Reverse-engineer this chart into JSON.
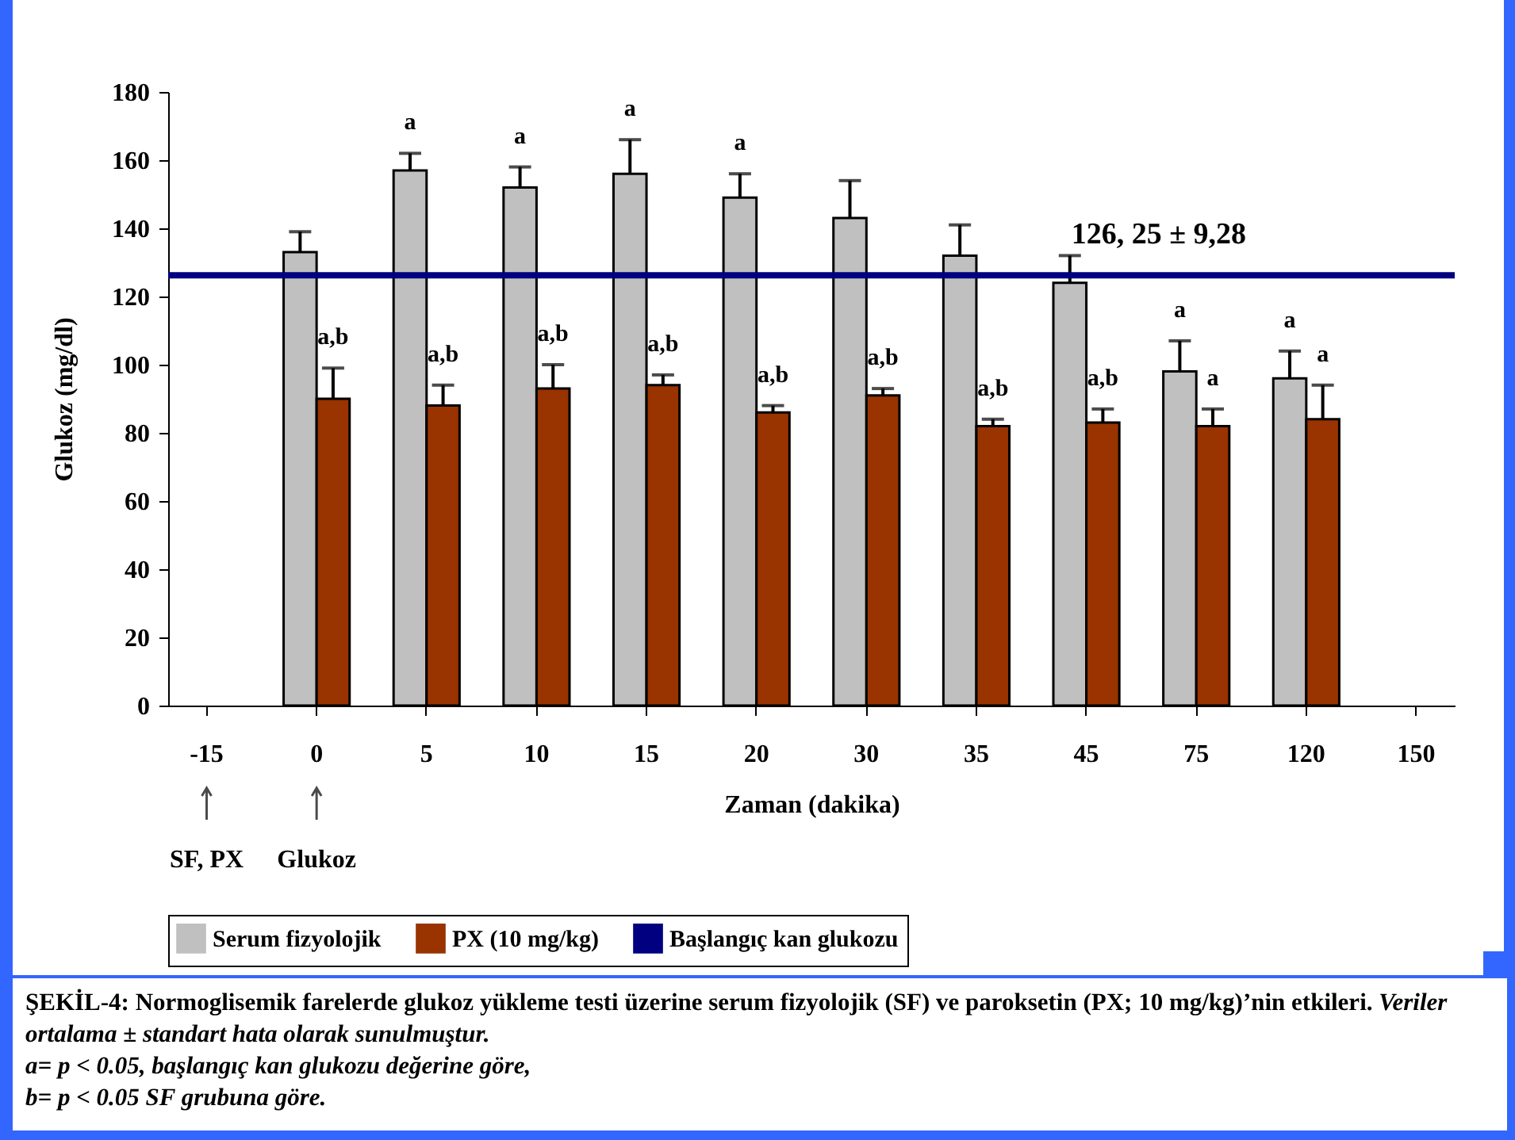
{
  "chart_data": {
    "type": "bar",
    "ylabel": "Glukoz (mg/dl)",
    "xlabel": "Zaman (dakika)",
    "categories": [
      "-15",
      "0",
      "5",
      "10",
      "15",
      "20",
      "30",
      "35",
      "45",
      "75",
      "120",
      "150"
    ],
    "series": [
      {
        "name": "Serum fizyolojik",
        "color": "#c0c0c0",
        "values": [
          null,
          133,
          157,
          152,
          156,
          149,
          143,
          132,
          124,
          98,
          96,
          null
        ],
        "errors": [
          null,
          6,
          5,
          6,
          10,
          7,
          11,
          9,
          8,
          9,
          8,
          null
        ],
        "value_labels": [
          null,
          null,
          "a",
          "a",
          "a",
          "a",
          null,
          null,
          null,
          "a",
          "a",
          null
        ]
      },
      {
        "name": "PX (10 mg/kg)",
        "color": "#993300",
        "values": [
          null,
          90,
          88,
          93,
          94,
          86,
          91,
          82,
          83,
          82,
          84,
          null
        ],
        "errors": [
          null,
          9,
          6,
          7,
          3,
          2,
          2,
          2,
          4,
          5,
          10,
          null
        ],
        "value_labels": [
          null,
          "a,b",
          "a,b",
          "a,b",
          "a,b",
          "a,b",
          "a,b",
          "a,b",
          "a,b",
          "a",
          "a",
          null
        ]
      }
    ],
    "ylim": [
      0,
      180
    ],
    "yticks": [
      0,
      20,
      40,
      60,
      80,
      100,
      120,
      140,
      160,
      180
    ],
    "grid": false,
    "legend": "bottom",
    "ref_lines": [
      {
        "axis": "y",
        "value": 126.25,
        "label": "Başlangıç kan glukozu",
        "color": "#000080"
      }
    ],
    "annotations": [
      {
        "text": "126, 25 ± 9,28",
        "y": 126.25
      },
      "SF, PX",
      "Glukoz",
      "ŞEKİL-4: Normoglisemik farelerde glukoz yükleme testi üzerine serum fizyolojik (SF) ve paroksetin (PX; 10 mg/kg)’nin etkileri.",
      "Veriler ortalama ± standart hata olarak sunulmuştur.",
      "a= p < 0.05, başlangıç kan glukozu değerine göre,",
      "b= p < 0.05 SF grubuna göre."
    ]
  }
}
